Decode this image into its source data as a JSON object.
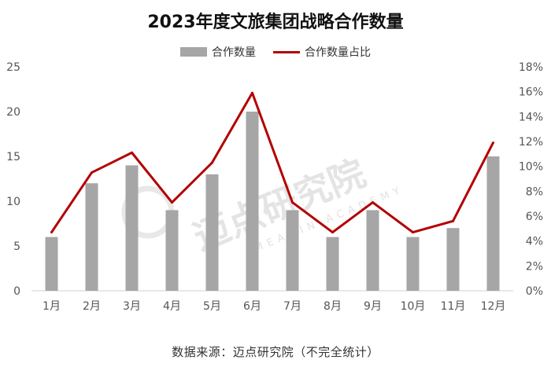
{
  "title": "2023年度文旅集团战略合作数量",
  "legend": {
    "bars": "合作数量",
    "line": "合作数量占比"
  },
  "source": "数据来源：迈点研究院（不完全统计）",
  "watermark": {
    "cn": "迈点研究院",
    "en": "MEADIN ACADEMY"
  },
  "colors": {
    "bar": "#a6a6a6",
    "line": "#b30000",
    "axis_text": "#555555",
    "axis_line": "#d0d0d0"
  },
  "chart_data": {
    "type": "bar+line",
    "title": "2023年度文旅集团战略合作数量",
    "categories": [
      "1月",
      "2月",
      "3月",
      "4月",
      "5月",
      "6月",
      "7月",
      "8月",
      "9月",
      "10月",
      "11月",
      "12月"
    ],
    "series": [
      {
        "name": "合作数量",
        "type": "bar",
        "axis": "left",
        "values": [
          6,
          12,
          14,
          9,
          13,
          20,
          9,
          6,
          9,
          6,
          7,
          15
        ]
      },
      {
        "name": "合作数量占比",
        "type": "line",
        "axis": "right",
        "values": [
          4.7,
          9.5,
          11.1,
          7.1,
          10.3,
          15.9,
          7.1,
          4.7,
          7.1,
          4.7,
          5.6,
          11.9
        ]
      }
    ],
    "ylim_left": [
      0,
      25
    ],
    "yticks_left": [
      "0",
      "5",
      "10",
      "15",
      "20",
      "25"
    ],
    "ylim_right": [
      0,
      18
    ],
    "yticks_right": [
      "0%",
      "2%",
      "4%",
      "6%",
      "8%",
      "10%",
      "12%",
      "14%",
      "16%",
      "18%"
    ],
    "grid": false,
    "legend_position": "top-center"
  }
}
